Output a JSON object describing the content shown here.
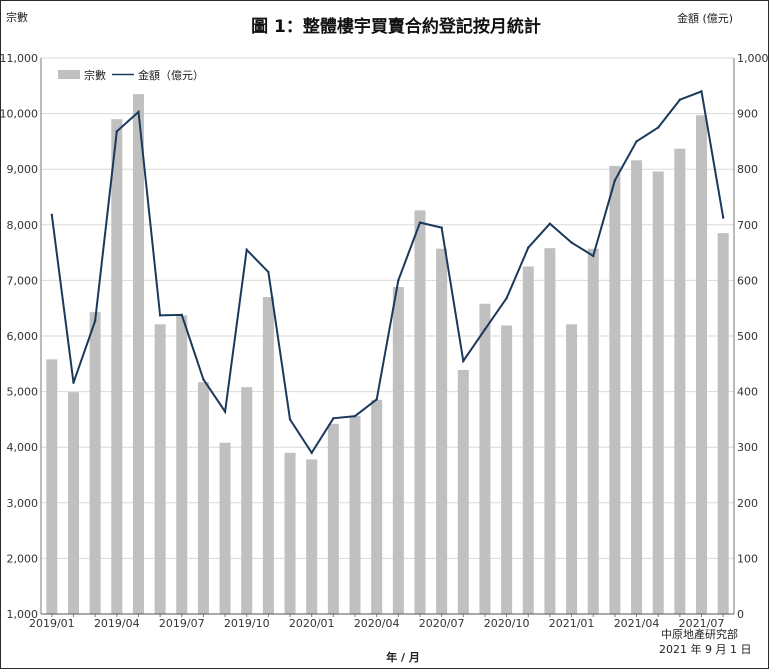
{
  "chart_data": {
    "type": "bar",
    "title": "圖 1：整體樓宇買賣合約登記按月統計",
    "y_left_unit": "宗數",
    "y_right_unit": "金額 (億元)",
    "xlabel": "年 / 月",
    "ylim_left": [
      1000,
      11000
    ],
    "ylim_right": [
      0,
      1000
    ],
    "left_ticks": [
      "1,000",
      "2,000",
      "3,000",
      "4,000",
      "5,000",
      "6,000",
      "7,000",
      "8,000",
      "9,000",
      "10,000",
      "11,000"
    ],
    "right_ticks": [
      "0",
      "100",
      "200",
      "300",
      "400",
      "500",
      "600",
      "700",
      "800",
      "900",
      "1,000"
    ],
    "x_tick_labels": [
      "2019/01",
      "2019/04",
      "2019/07",
      "2019/10",
      "2020/01",
      "2020/04",
      "2020/07",
      "2020/10",
      "2021/01",
      "2021/04",
      "2021/07"
    ],
    "categories": [
      "2019/01",
      "2019/02",
      "2019/03",
      "2019/04",
      "2019/05",
      "2019/06",
      "2019/07",
      "2019/08",
      "2019/09",
      "2019/10",
      "2019/11",
      "2019/12",
      "2020/01",
      "2020/02",
      "2020/03",
      "2020/04",
      "2020/05",
      "2020/06",
      "2020/07",
      "2020/08",
      "2020/09",
      "2020/10",
      "2020/11",
      "2020/12",
      "2021/01",
      "2021/02",
      "2021/03",
      "2021/04",
      "2021/05",
      "2021/06",
      "2021/07",
      "2021/08"
    ],
    "grid": true,
    "legend_position": "top-left",
    "series": [
      {
        "name": "宗數",
        "type": "bar",
        "axis": "left",
        "color": "#c0c0c0",
        "values": [
          5580,
          4990,
          6430,
          9900,
          10350,
          6210,
          6370,
          5170,
          4080,
          5080,
          6700,
          3900,
          3780,
          4420,
          4560,
          4850,
          6880,
          8260,
          7570,
          5390,
          6580,
          6190,
          7250,
          7580,
          6210,
          7570,
          9060,
          9160,
          8960,
          9370,
          9970,
          7850
        ]
      },
      {
        "name": "金額（億元）",
        "type": "line",
        "axis": "right",
        "color": "#1a3a5c",
        "values": [
          718,
          416,
          527,
          868,
          903,
          537,
          538,
          422,
          364,
          655,
          615,
          350,
          290,
          352,
          356,
          386,
          600,
          704,
          695,
          455,
          512,
          568,
          659,
          702,
          668,
          644,
          780,
          850,
          875,
          925,
          940,
          713
        ]
      }
    ]
  },
  "source": {
    "name": "中原地產研究部",
    "date": "2021 年 9 月 1 日"
  }
}
